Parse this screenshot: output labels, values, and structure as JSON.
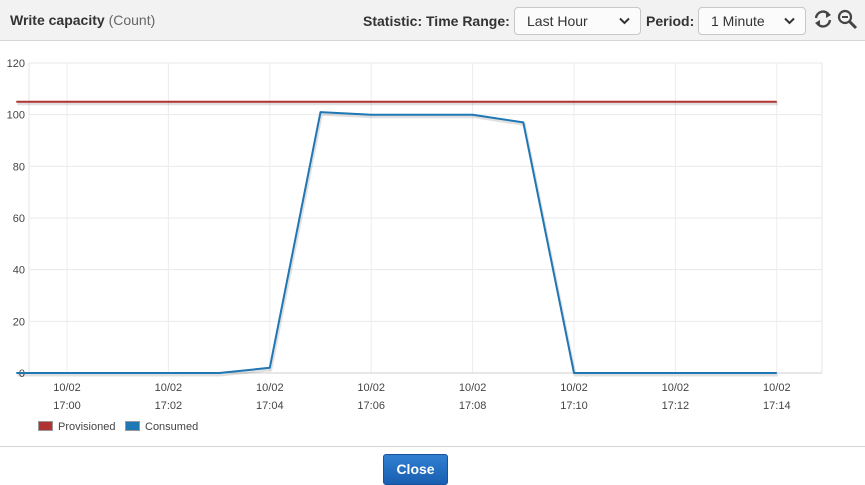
{
  "header": {
    "title": "Write capacity",
    "unit": "(Count)",
    "statistic_label": "Statistic:",
    "time_range_label": "Time Range:",
    "time_range_value": "Last Hour",
    "period_label": "Period:",
    "period_value": "1 Minute",
    "refresh_icon": "refresh-icon",
    "zoom_icon": "zoom-icon"
  },
  "footer": {
    "close_label": "Close"
  },
  "colors": {
    "provisioned": "#b03232",
    "consumed": "#1f77b4",
    "close_button": "#1f66bd"
  },
  "chart_data": {
    "type": "line",
    "title": "",
    "xlabel": "",
    "ylabel": "",
    "ylim": [
      0,
      120
    ],
    "yticks": [
      0,
      20,
      40,
      60,
      80,
      100,
      120
    ],
    "xticks": [
      {
        "date": "10/02",
        "time": "17:00"
      },
      {
        "date": "10/02",
        "time": "17:02"
      },
      {
        "date": "10/02",
        "time": "17:04"
      },
      {
        "date": "10/02",
        "time": "17:06"
      },
      {
        "date": "10/02",
        "time": "17:08"
      },
      {
        "date": "10/02",
        "time": "17:10"
      },
      {
        "date": "10/02",
        "time": "17:12"
      },
      {
        "date": "10/02",
        "time": "17:14"
      }
    ],
    "grid": true,
    "legend": "bottom-left",
    "x": [
      "16:59",
      "17:00",
      "17:01",
      "17:02",
      "17:03",
      "17:04",
      "17:05",
      "17:06",
      "17:07",
      "17:08",
      "17:09",
      "17:10",
      "17:11",
      "17:12",
      "17:13",
      "17:14"
    ],
    "series": [
      {
        "name": "Provisioned",
        "values": [
          105,
          105,
          105,
          105,
          105,
          105,
          105,
          105,
          105,
          105,
          105,
          105,
          105,
          105,
          105,
          105
        ]
      },
      {
        "name": "Consumed",
        "values": [
          0,
          0,
          0,
          0,
          0,
          2,
          101,
          100,
          100,
          100,
          97,
          0,
          0,
          0,
          0,
          0
        ]
      }
    ]
  }
}
